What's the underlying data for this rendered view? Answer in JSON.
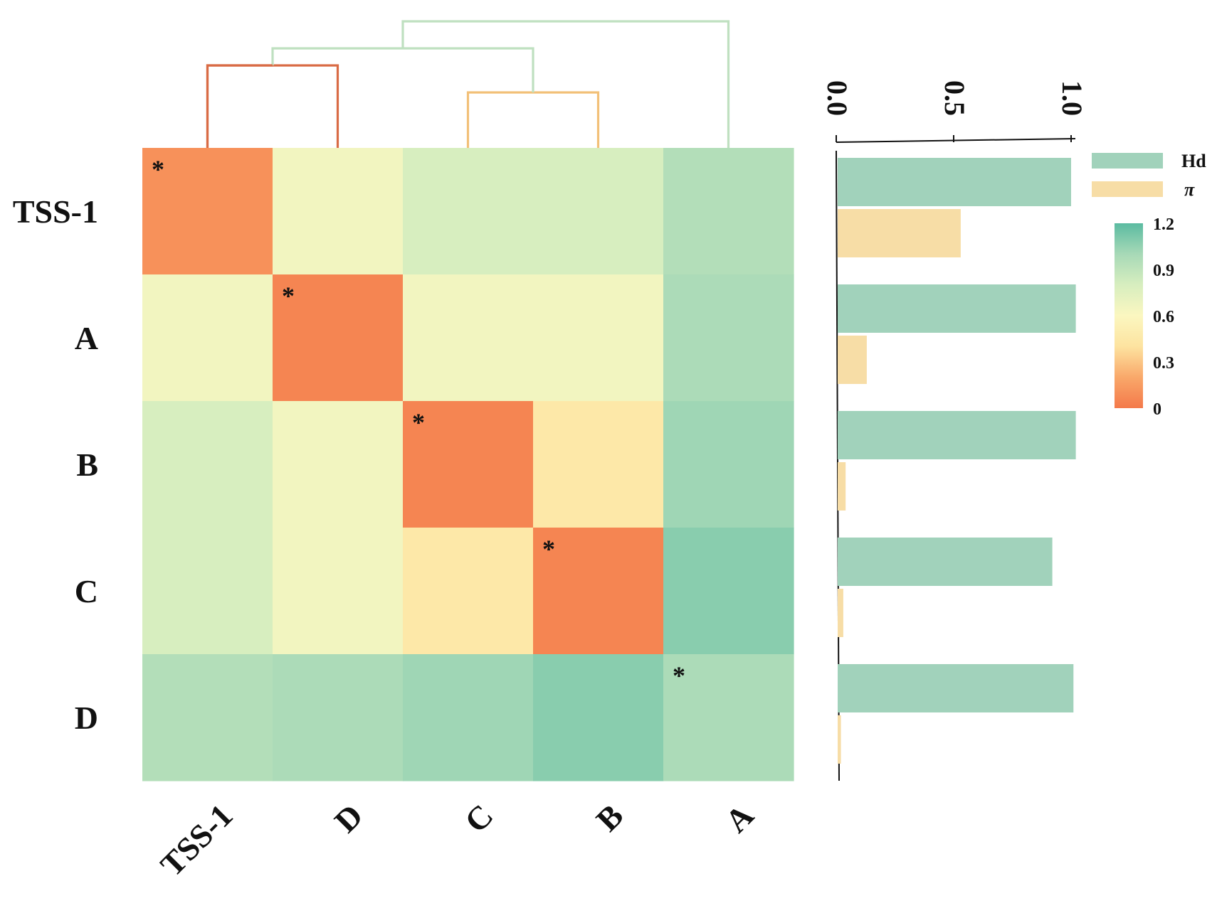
{
  "chart_data": [
    {
      "type": "heatmap",
      "rows": [
        "TSS-1",
        "A",
        "B",
        "C",
        "D"
      ],
      "columns": [
        "TSS-1",
        "D",
        "C",
        "B",
        "A"
      ],
      "values": [
        [
          0.1,
          0.65,
          0.8,
          0.8,
          0.95
        ],
        [
          0.65,
          0.05,
          0.65,
          0.65,
          0.98
        ],
        [
          0.8,
          0.65,
          0.05,
          0.45,
          1.02
        ],
        [
          0.8,
          0.65,
          0.45,
          0.05,
          1.08
        ],
        [
          0.95,
          0.98,
          1.02,
          1.08,
          0.98
        ]
      ],
      "highlighted_cells": [
        [
          0,
          0
        ],
        [
          1,
          1
        ],
        [
          2,
          2
        ],
        [
          3,
          3
        ],
        [
          4,
          4
        ]
      ],
      "marker": "*",
      "dendrogram": {
        "merges": [
          {
            "left": "TSS-1",
            "right": "D",
            "color": "#d96b45"
          },
          {
            "left": "C",
            "right": "B",
            "color": "#f2c078"
          },
          {
            "left": "TSS-1+D",
            "right": "C+B",
            "color": "#bfe0c0"
          },
          {
            "left": "TSS-1+D+C+B",
            "right": "A",
            "color": "#bfe0c0"
          }
        ]
      },
      "colorbar": {
        "min": 0,
        "max": 1.2,
        "ticks": [
          "0",
          "0.3",
          "0.6",
          "0.9",
          "1.2"
        ],
        "colors": [
          "#f4794a",
          "#f9a86a",
          "#fde3a0",
          "#fbf7c0",
          "#d7eebf",
          "#a7d9b7",
          "#5bbba1"
        ]
      }
    },
    {
      "type": "bar",
      "orientation": "horizontal",
      "categories": [
        "TSS-1",
        "A",
        "B",
        "C",
        "D"
      ],
      "series": [
        {
          "name": "Hd",
          "values": [
            1.0,
            1.02,
            1.02,
            0.92,
            1.01
          ],
          "color": "#a1d2bb"
        },
        {
          "name": "π",
          "values": [
            0.53,
            0.13,
            0.04,
            0.03,
            0.02
          ],
          "color": "#f7dda6"
        }
      ],
      "xlim": [
        0.0,
        1.0
      ],
      "ticks": [
        "0.0",
        "0.5",
        "1.0"
      ],
      "legend": "top-right"
    }
  ]
}
